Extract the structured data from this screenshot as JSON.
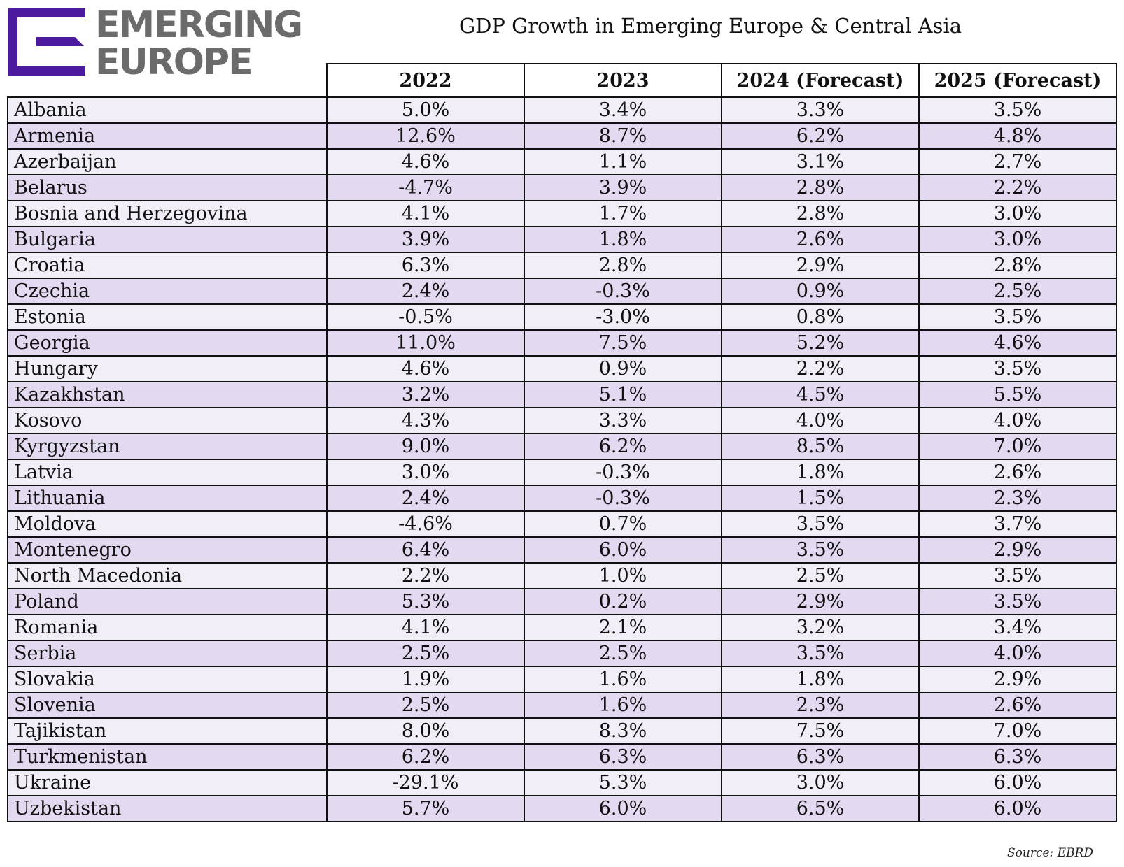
{
  "logo": {
    "line1": "EMERGING",
    "line2": "EUROPE",
    "mark_color": "#4b1a9e",
    "text_color": "#6b6b6b"
  },
  "title": "GDP Growth in Emerging Europe & Central Asia",
  "source": "Source: EBRD",
  "colors": {
    "row_light": "#f1eef8",
    "row_dark": "#e3d9f1",
    "border": "#111111"
  },
  "chart_data": {
    "type": "table",
    "columns": [
      "2022",
      "2023",
      "2024 (Forecast)",
      "2025 (Forecast)"
    ],
    "rows": [
      {
        "country": "Albania",
        "values": [
          "5.0%",
          "3.4%",
          "3.3%",
          "3.5%"
        ]
      },
      {
        "country": "Armenia",
        "values": [
          "12.6%",
          "8.7%",
          "6.2%",
          "4.8%"
        ]
      },
      {
        "country": "Azerbaijan",
        "values": [
          "4.6%",
          "1.1%",
          "3.1%",
          "2.7%"
        ]
      },
      {
        "country": "Belarus",
        "values": [
          "-4.7%",
          "3.9%",
          "2.8%",
          "2.2%"
        ]
      },
      {
        "country": "Bosnia and Herzegovina",
        "values": [
          "4.1%",
          "1.7%",
          "2.8%",
          "3.0%"
        ]
      },
      {
        "country": "Bulgaria",
        "values": [
          "3.9%",
          "1.8%",
          "2.6%",
          "3.0%"
        ]
      },
      {
        "country": "Croatia",
        "values": [
          "6.3%",
          "2.8%",
          "2.9%",
          "2.8%"
        ]
      },
      {
        "country": "Czechia",
        "values": [
          "2.4%",
          "-0.3%",
          "0.9%",
          "2.5%"
        ]
      },
      {
        "country": "Estonia",
        "values": [
          "-0.5%",
          "-3.0%",
          "0.8%",
          "3.5%"
        ]
      },
      {
        "country": "Georgia",
        "values": [
          "11.0%",
          "7.5%",
          "5.2%",
          "4.6%"
        ]
      },
      {
        "country": "Hungary",
        "values": [
          "4.6%",
          "0.9%",
          "2.2%",
          "3.5%"
        ]
      },
      {
        "country": "Kazakhstan",
        "values": [
          "3.2%",
          "5.1%",
          "4.5%",
          "5.5%"
        ]
      },
      {
        "country": "Kosovo",
        "values": [
          "4.3%",
          "3.3%",
          "4.0%",
          "4.0%"
        ]
      },
      {
        "country": "Kyrgyzstan",
        "values": [
          "9.0%",
          "6.2%",
          "8.5%",
          "7.0%"
        ]
      },
      {
        "country": "Latvia",
        "values": [
          "3.0%",
          "-0.3%",
          "1.8%",
          "2.6%"
        ]
      },
      {
        "country": "Lithuania",
        "values": [
          "2.4%",
          "-0.3%",
          "1.5%",
          "2.3%"
        ]
      },
      {
        "country": "Moldova",
        "values": [
          "-4.6%",
          "0.7%",
          "3.5%",
          "3.7%"
        ]
      },
      {
        "country": "Montenegro",
        "values": [
          "6.4%",
          "6.0%",
          "3.5%",
          "2.9%"
        ]
      },
      {
        "country": "North Macedonia",
        "values": [
          "2.2%",
          "1.0%",
          "2.5%",
          "3.5%"
        ]
      },
      {
        "country": "Poland",
        "values": [
          "5.3%",
          "0.2%",
          "2.9%",
          "3.5%"
        ]
      },
      {
        "country": "Romania",
        "values": [
          "4.1%",
          "2.1%",
          "3.2%",
          "3.4%"
        ]
      },
      {
        "country": "Serbia",
        "values": [
          "2.5%",
          "2.5%",
          "3.5%",
          "4.0%"
        ]
      },
      {
        "country": "Slovakia",
        "values": [
          "1.9%",
          "1.6%",
          "1.8%",
          "2.9%"
        ]
      },
      {
        "country": "Slovenia",
        "values": [
          "2.5%",
          "1.6%",
          "2.3%",
          "2.6%"
        ]
      },
      {
        "country": "Tajikistan",
        "values": [
          "8.0%",
          "8.3%",
          "7.5%",
          "7.0%"
        ]
      },
      {
        "country": "Turkmenistan",
        "values": [
          "6.2%",
          "6.3%",
          "6.3%",
          "6.3%"
        ]
      },
      {
        "country": "Ukraine",
        "values": [
          "-29.1%",
          "5.3%",
          "3.0%",
          "6.0%"
        ]
      },
      {
        "country": "Uzbekistan",
        "values": [
          "5.7%",
          "6.0%",
          "6.5%",
          "6.0%"
        ]
      }
    ]
  }
}
